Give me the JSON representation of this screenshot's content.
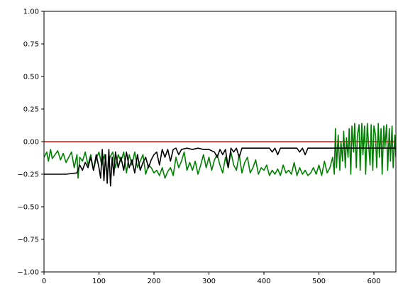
{
  "chart_data": {
    "type": "line",
    "title": "",
    "xlabel": "",
    "ylabel": "",
    "xlim": [
      0,
      640
    ],
    "ylim": [
      -1.0,
      1.0
    ],
    "grid": false,
    "legend": "none",
    "x_ticks": [
      0,
      100,
      200,
      300,
      400,
      500,
      600
    ],
    "x_tick_labels": [
      "0",
      "100",
      "200",
      "300",
      "400",
      "500",
      "600"
    ],
    "y_ticks": [
      -1.0,
      -0.75,
      -0.5,
      -0.25,
      0.0,
      0.25,
      0.5,
      0.75,
      1.0
    ],
    "y_tick_labels": [
      "−1.00",
      "−0.75",
      "−0.50",
      "−0.25",
      "0.00",
      "0.25",
      "0.50",
      "0.75",
      "1.00"
    ],
    "series": [
      {
        "color": "#ff0000",
        "x": [
          0,
          640
        ],
        "y": [
          0.0,
          0.0
        ]
      },
      {
        "color": "#008000",
        "x": [
          0,
          5,
          8,
          12,
          15,
          20,
          25,
          30,
          35,
          40,
          45,
          50,
          55,
          60,
          62,
          65,
          70,
          75,
          80,
          85,
          90,
          95,
          100,
          105,
          110,
          115,
          120,
          125,
          130,
          135,
          140,
          145,
          150,
          155,
          160,
          165,
          170,
          175,
          180,
          185,
          190,
          195,
          200,
          205,
          210,
          215,
          220,
          225,
          230,
          235,
          240,
          245,
          250,
          255,
          260,
          265,
          270,
          275,
          280,
          285,
          290,
          295,
          300,
          305,
          310,
          315,
          320,
          325,
          330,
          335,
          340,
          345,
          350,
          355,
          360,
          365,
          370,
          375,
          380,
          385,
          390,
          395,
          400,
          405,
          410,
          415,
          420,
          425,
          430,
          435,
          440,
          445,
          450,
          455,
          460,
          465,
          470,
          475,
          480,
          485,
          490,
          495,
          500,
          505,
          510,
          515,
          520,
          525,
          528,
          530,
          532,
          535,
          538,
          540,
          543,
          545,
          548,
          550,
          553,
          555,
          558,
          560,
          563,
          565,
          568,
          570,
          573,
          575,
          578,
          580,
          583,
          585,
          588,
          590,
          593,
          595,
          598,
          600,
          603,
          605,
          608,
          610,
          613,
          615,
          618,
          620,
          623,
          625,
          628,
          630,
          633,
          635,
          638,
          640
        ],
        "y": [
          -0.12,
          -0.08,
          -0.15,
          -0.06,
          -0.13,
          -0.1,
          -0.07,
          -0.14,
          -0.09,
          -0.16,
          -0.12,
          -0.08,
          -0.2,
          -0.1,
          -0.28,
          -0.12,
          -0.15,
          -0.08,
          -0.18,
          -0.1,
          -0.22,
          -0.13,
          -0.08,
          -0.18,
          -0.1,
          -0.25,
          -0.12,
          -0.08,
          -0.2,
          -0.1,
          -0.15,
          -0.08,
          -0.24,
          -0.1,
          -0.18,
          -0.08,
          -0.2,
          -0.15,
          -0.1,
          -0.25,
          -0.18,
          -0.2,
          -0.24,
          -0.22,
          -0.26,
          -0.2,
          -0.28,
          -0.23,
          -0.2,
          -0.26,
          -0.12,
          -0.2,
          -0.15,
          -0.08,
          -0.22,
          -0.16,
          -0.22,
          -0.15,
          -0.25,
          -0.18,
          -0.1,
          -0.2,
          -0.12,
          -0.22,
          -0.14,
          -0.1,
          -0.18,
          -0.24,
          -0.12,
          -0.2,
          -0.08,
          -0.18,
          -0.22,
          -0.1,
          -0.24,
          -0.16,
          -0.12,
          -0.24,
          -0.2,
          -0.14,
          -0.25,
          -0.2,
          -0.22,
          -0.18,
          -0.26,
          -0.22,
          -0.25,
          -0.21,
          -0.26,
          -0.18,
          -0.24,
          -0.22,
          -0.25,
          -0.16,
          -0.26,
          -0.2,
          -0.25,
          -0.22,
          -0.26,
          -0.24,
          -0.2,
          -0.25,
          -0.18,
          -0.26,
          -0.15,
          -0.24,
          -0.2,
          -0.12,
          -0.25,
          0.1,
          -0.2,
          0.05,
          -0.22,
          0.0,
          -0.15,
          0.08,
          -0.2,
          0.03,
          -0.12,
          0.1,
          -0.25,
          0.12,
          -0.08,
          0.14,
          -0.2,
          0.05,
          0.13,
          -0.22,
          0.14,
          -0.1,
          0.12,
          -0.25,
          0.14,
          0.0,
          -0.18,
          0.13,
          -0.22,
          0.12,
          0.05,
          -0.2,
          0.14,
          -0.12,
          0.1,
          -0.25,
          0.12,
          -0.05,
          0.13,
          -0.22,
          0.1,
          -0.15,
          0.12,
          -0.2,
          0.05,
          -0.12
        ],
        "name": ""
      },
      {
        "color": "#000000",
        "x": [
          0,
          20,
          40,
          60,
          65,
          70,
          75,
          80,
          85,
          90,
          95,
          100,
          103,
          106,
          109,
          112,
          115,
          118,
          121,
          124,
          127,
          130,
          135,
          140,
          145,
          150,
          155,
          160,
          165,
          170,
          175,
          180,
          185,
          190,
          195,
          200,
          205,
          210,
          215,
          220,
          225,
          230,
          235,
          240,
          245,
          250,
          260,
          270,
          280,
          290,
          300,
          310,
          315,
          320,
          325,
          330,
          335,
          340,
          345,
          350,
          355,
          360,
          380,
          400,
          410,
          415,
          420,
          425,
          430,
          440,
          450,
          460,
          465,
          470,
          475,
          480,
          500,
          520,
          540,
          560,
          580,
          600,
          620,
          640
        ],
        "y": [
          -0.25,
          -0.25,
          -0.25,
          -0.24,
          -0.18,
          -0.22,
          -0.16,
          -0.2,
          -0.12,
          -0.22,
          -0.1,
          -0.2,
          -0.28,
          -0.06,
          -0.3,
          -0.1,
          -0.32,
          -0.06,
          -0.34,
          -0.12,
          -0.26,
          -0.08,
          -0.2,
          -0.12,
          -0.22,
          -0.08,
          -0.2,
          -0.14,
          -0.24,
          -0.1,
          -0.22,
          -0.16,
          -0.12,
          -0.2,
          -0.14,
          -0.1,
          -0.08,
          -0.18,
          -0.06,
          -0.12,
          -0.06,
          -0.15,
          -0.06,
          -0.05,
          -0.1,
          -0.06,
          -0.05,
          -0.06,
          -0.05,
          -0.06,
          -0.06,
          -0.08,
          -0.12,
          -0.06,
          -0.1,
          -0.06,
          -0.2,
          -0.05,
          -0.08,
          -0.05,
          -0.12,
          -0.05,
          -0.05,
          -0.05,
          -0.05,
          -0.08,
          -0.05,
          -0.1,
          -0.05,
          -0.05,
          -0.05,
          -0.05,
          -0.08,
          -0.05,
          -0.1,
          -0.05,
          -0.05,
          -0.05,
          -0.05,
          -0.05,
          -0.05,
          -0.05,
          -0.05,
          -0.05
        ],
        "name": ""
      }
    ]
  }
}
